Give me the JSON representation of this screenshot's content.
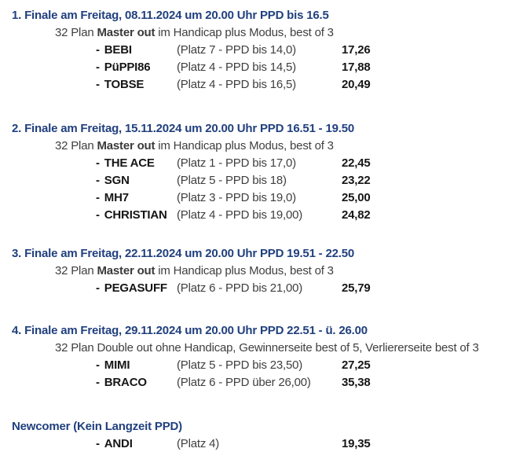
{
  "document": {
    "bullet": "-",
    "colors": {
      "background": "#ffffff",
      "heading_blue": "#21407e",
      "body_gray": "#3f3f3f",
      "strong_black": "#161616"
    },
    "sections": [
      {
        "title": "1. Finale am Freitag, 08.11.2024 um 20.00 Uhr PPD bis 16.5",
        "plan": {
          "prefix": "32 Plan ",
          "mode": "Master out",
          "suffix": " im Handicap plus Modus, best of 3"
        },
        "players": [
          {
            "name": "BEBI",
            "detail": "(Platz 7 - PPD bis 14,0)",
            "value": "17,26"
          },
          {
            "name": "PüPPI86",
            "detail": "(Platz 4 - PPD bis 14,5)",
            "value": "17,88"
          },
          {
            "name": "TOBSE",
            "detail": "(Platz 4 - PPD bis 16,5)",
            "value": "20,49"
          }
        ]
      },
      {
        "title": "2. Finale am Freitag, 15.11.2024 um 20.00 Uhr PPD 16.51 - 19.50",
        "plan": {
          "prefix": "32 Plan ",
          "mode": "Master out",
          "suffix": " im Handicap plus Modus, best of 3"
        },
        "players": [
          {
            "name": "THE ACE",
            "detail": "(Platz 1 - PPD bis 17,0)",
            "value": "22,45"
          },
          {
            "name": "SGN",
            "detail": "(Platz 5 - PPD bis 18)",
            "value": "23,22"
          },
          {
            "name": "MH7",
            "detail": "(Platz 3 - PPD bis 19,0)",
            "value": "25,00"
          },
          {
            "name": "CHRISTIAN",
            "detail": "(Platz 4 - PPD bis 19,00)",
            "value": "24,82"
          }
        ]
      },
      {
        "title": "3. Finale am Freitag, 22.11.2024 um 20.00 Uhr PPD 19.51 - 22.50",
        "plan": {
          "prefix": "32 Plan ",
          "mode": "Master out",
          "suffix": " im Handicap plus Modus, best of 3"
        },
        "players": [
          {
            "name": "PEGASUFF",
            "detail": "(Platz 6 - PPD bis 21,00)",
            "value": "25,79"
          }
        ]
      },
      {
        "title": "4. Finale am Freitag, 29.11.2024 um 20.00 Uhr PPD 22.51 - ü. 26.00",
        "plan": {
          "prefix": "32 Plan ",
          "mode": "Double out",
          "suffix": " ohne Handicap, Gewinnerseite best of 5, Verliererseite best of 3"
        },
        "players": [
          {
            "name": "MIMI",
            "detail": "(Platz 5 - PPD bis 23,50)",
            "value": "27,25"
          },
          {
            "name": "BRACO",
            "detail": "(Platz 6 - PPD über 26,00)",
            "value": "35,38"
          }
        ]
      },
      {
        "title": "Newcomer (Kein Langzeit PPD)",
        "players": [
          {
            "name": "ANDI",
            "detail": "(Platz 4)",
            "value": "19,35"
          }
        ]
      }
    ]
  }
}
